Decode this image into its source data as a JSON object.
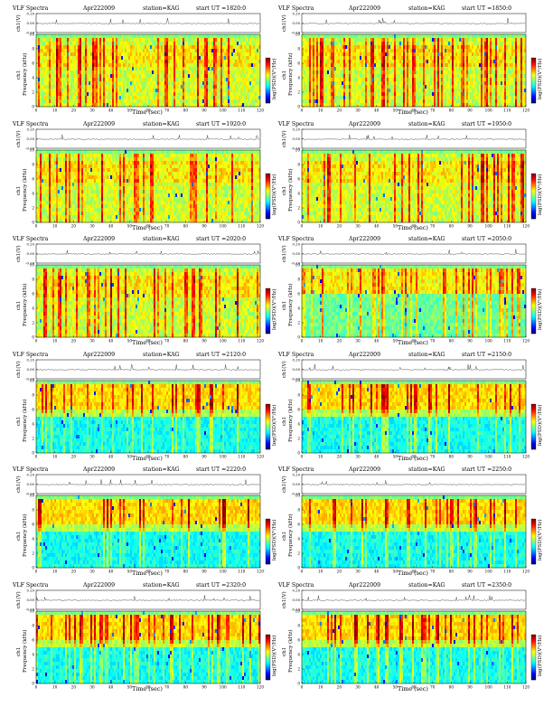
{
  "chart_data": {
    "type": "heatmap",
    "panels": [
      {
        "title": "VLF Spectra",
        "date": "Apr222009",
        "station": "station=KAG",
        "start_label": "start",
        "start_ut": "UT  =1820:0",
        "profile": "dense"
      },
      {
        "title": "VLF Spectra",
        "date": "Apr222009",
        "station": "station=KAG",
        "start_label": "start",
        "start_ut": "UT  =1850:0",
        "profile": "dense"
      },
      {
        "title": "VLF Spectra",
        "date": "Apr222009",
        "station": "station=KAG",
        "start_label": "start",
        "start_ut": "UT  =1920:0",
        "profile": "dense"
      },
      {
        "title": "VLF Spectra",
        "date": "Apr222009",
        "station": "station=KAG",
        "start_label": "start",
        "start_ut": "UT  =1950:0",
        "profile": "dense"
      },
      {
        "title": "VLF Spectra",
        "date": "Apr222009",
        "station": "station=KAG",
        "start_label": "start",
        "start_ut": "UT  =2020:0",
        "profile": "dense"
      },
      {
        "title": "VLF Spectra",
        "date": "Apr222009",
        "station": "station=KAG",
        "start_label": "start",
        "start_ut": "UT  =2050:0",
        "profile": "mixed"
      },
      {
        "title": "VLF Spectra",
        "date": "Apr222009",
        "station": "station=KAG",
        "start_label": "start",
        "start_ut": "UT  =2120:0",
        "profile": "upper"
      },
      {
        "title": "VLF Spectra",
        "date": "Apr222009",
        "station": "station=KAG",
        "start_label": "start",
        "start_ut": "UT  =2150:0",
        "profile": "upper"
      },
      {
        "title": "VLF Spectra",
        "date": "Apr222009",
        "station": "station=KAG",
        "start_label": "start",
        "start_ut": "UT  =2220:0",
        "profile": "upper"
      },
      {
        "title": "VLF Spectra",
        "date": "Apr222009",
        "station": "station=KAG",
        "start_label": "start",
        "start_ut": "UT  =2250:0",
        "profile": "upper"
      },
      {
        "title": "VLF Spectra",
        "date": "Apr222009",
        "station": "station=KAG",
        "start_label": "start",
        "start_ut": "UT  =2320:0",
        "profile": "upper"
      },
      {
        "title": "VLF Spectra",
        "date": "Apr222009",
        "station": "station=KAG",
        "start_label": "start",
        "start_ut": "UT  =2350:0",
        "profile": "upper"
      }
    ],
    "waveform_ylabel": "ch1(V)",
    "waveform_ticks": [
      "0.20",
      "0.00",
      "-0.20"
    ],
    "waveform_range": [
      -0.2,
      0.2
    ],
    "spectrogram_ylabel_top": "ch1",
    "spectrogram_ylabel": "Frequency  (kHz)",
    "xlabel": "Time  (sec)",
    "xlim": [
      0,
      120
    ],
    "xticks": [
      "0",
      "10",
      "20",
      "30",
      "40",
      "50",
      "60",
      "70",
      "80",
      "90",
      "100",
      "110",
      "120"
    ],
    "ylim": [
      0,
      10
    ],
    "yticks": [
      "0",
      "2",
      "4",
      "6",
      "8",
      "10"
    ],
    "colorbar_label": "log(PSD)(V²/Hz)",
    "colorbar_colors": [
      "#00007f",
      "#0000ff",
      "#00c8ff",
      "#00ffa0",
      "#70ff40",
      "#ffff00",
      "#ff9900",
      "#ff0000",
      "#7f0000"
    ],
    "colormap": "jet"
  }
}
